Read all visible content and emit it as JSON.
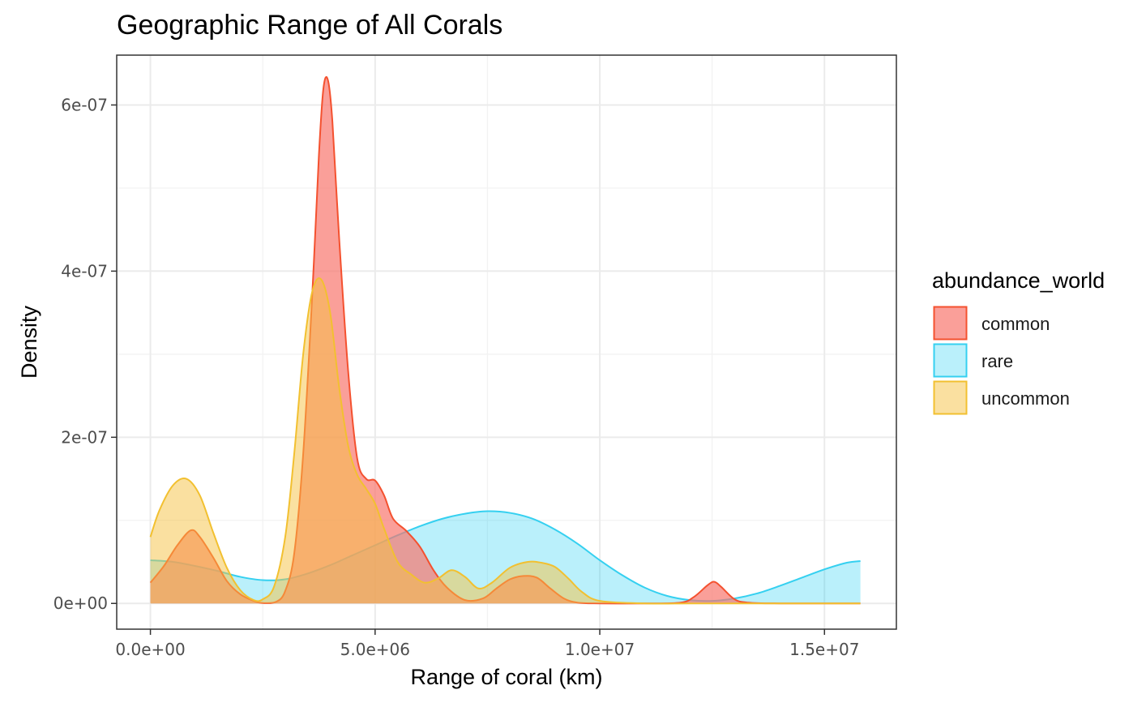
{
  "chart_data": {
    "type": "area",
    "subtype": "density",
    "title": "Geographic Range of All Corals",
    "xlabel": "Range of coral (km)",
    "ylabel": "Density",
    "xlim": [
      -750000,
      16600000
    ],
    "ylim": [
      -3.1e-08,
      6.6e-07
    ],
    "x_ticks": [
      0,
      5000000,
      10000000,
      15000000
    ],
    "x_tick_labels": [
      "0.0e+00",
      "5.0e+06",
      "1.0e+07",
      "1.5e+07"
    ],
    "y_ticks": [
      0,
      2e-07,
      4e-07,
      6e-07
    ],
    "y_tick_labels": [
      "0e+00",
      "2e-07",
      "4e-07",
      "6e-07"
    ],
    "grid": true,
    "legend": {
      "title": "abundance_world",
      "position": "right",
      "entries": [
        "common",
        "rare",
        "uncommon"
      ]
    },
    "series": [
      {
        "name": "rare",
        "fill": "#00C8F0",
        "stroke": "#35D0F0",
        "fill_opacity": 0.27,
        "x": [
          0,
          500000,
          1000000,
          1500000,
          2000000,
          2500000,
          3000000,
          3500000,
          4000000,
          4500000,
          5000000,
          5500000,
          6000000,
          6500000,
          7000000,
          7500000,
          8000000,
          8500000,
          9000000,
          9500000,
          10000000,
          10500000,
          11000000,
          11500000,
          12000000,
          12500000,
          13000000,
          13500000,
          14000000,
          14500000,
          15000000,
          15500000,
          15800000
        ],
        "values": [
          5.2e-08,
          5e-08,
          4.5e-08,
          3.9e-08,
          3.2e-08,
          2.8e-08,
          2.9e-08,
          3.6e-08,
          4.6e-08,
          5.8e-08,
          7e-08,
          8.2e-08,
          9.3e-08,
          1.02e-07,
          1.08e-07,
          1.11e-07,
          1.09e-07,
          1.02e-07,
          8.9e-08,
          7.2e-08,
          5.2e-08,
          3.4e-08,
          1.9e-08,
          9e-09,
          4e-09,
          3e-09,
          6e-09,
          1.2e-08,
          2.1e-08,
          3.1e-08,
          4.1e-08,
          4.9e-08,
          5.1e-08
        ]
      },
      {
        "name": "common",
        "fill": "#F8766D",
        "stroke": "#F4512F",
        "fill_opacity": 0.7,
        "x": [
          0,
          300000,
          600000,
          900000,
          1100000,
          1400000,
          1700000,
          2000000,
          2300000,
          2500000,
          2800000,
          3000000,
          3200000,
          3400000,
          3600000,
          3750000,
          3850000,
          3950000,
          4050000,
          4200000,
          4400000,
          4600000,
          4800000,
          5000000,
          5200000,
          5400000,
          5700000,
          6000000,
          6300000,
          6600000,
          7000000,
          7400000,
          7700000,
          8000000,
          8300000,
          8600000,
          8900000,
          9200000,
          9500000,
          10000000,
          11000000,
          11800000,
          12100000,
          12400000,
          12550000,
          12700000,
          13000000,
          13300000,
          14000000,
          15000000,
          15800000
        ],
        "values": [
          2.5e-08,
          4.5e-08,
          7e-08,
          8.8e-08,
          8e-08,
          5.5e-08,
          2.7e-08,
          1.1e-08,
          3e-09,
          5e-10,
          2e-09,
          1.5e-08,
          6e-08,
          1.8e-07,
          3.7e-07,
          5.4e-07,
          6.2e-07,
          6.3e-07,
          5.8e-07,
          4.4e-07,
          2.8e-07,
          1.75e-07,
          1.5e-07,
          1.48e-07,
          1.3e-07,
          1.02e-07,
          8.7e-08,
          6.8e-08,
          4e-08,
          1.9e-08,
          4e-09,
          6e-09,
          1.8e-08,
          2.9e-08,
          3.3e-08,
          3.1e-08,
          1.8e-08,
          6e-09,
          1e-09,
          0,
          0,
          1e-09,
          8e-09,
          2.2e-08,
          2.6e-08,
          2e-08,
          5e-09,
          1e-09,
          0,
          0,
          0
        ]
      },
      {
        "name": "uncommon",
        "fill": "#F5C242",
        "stroke": "#F2C030",
        "fill_opacity": 0.5,
        "x": [
          0,
          200000,
          500000,
          800000,
          1100000,
          1400000,
          1700000,
          2000000,
          2300000,
          2500000,
          2750000,
          3000000,
          3200000,
          3400000,
          3600000,
          3800000,
          4000000,
          4200000,
          4400000,
          4600000,
          4800000,
          5000000,
          5200000,
          5500000,
          5800000,
          6100000,
          6400000,
          6700000,
          7000000,
          7300000,
          7600000,
          8000000,
          8400000,
          8700000,
          9000000,
          9300000,
          9600000,
          10000000,
          11000000,
          12000000,
          13000000,
          14000000,
          15000000,
          15800000
        ],
        "values": [
          8e-08,
          1.12e-07,
          1.42e-07,
          1.5e-07,
          1.3e-07,
          8.5e-08,
          4.3e-08,
          1.6e-08,
          4e-09,
          5e-09,
          2e-08,
          8e-08,
          1.8e-07,
          3e-07,
          3.75e-07,
          3.9e-07,
          3.5e-07,
          2.6e-07,
          1.9e-07,
          1.55e-07,
          1.38e-07,
          1.2e-07,
          9e-08,
          5e-08,
          3.5e-08,
          2.5e-08,
          3e-08,
          4e-08,
          3.2e-08,
          1.8e-08,
          2.5e-08,
          4.3e-08,
          5e-08,
          4.9e-08,
          4.4e-08,
          3e-08,
          1.4e-08,
          3e-09,
          0,
          0,
          0,
          0,
          0,
          0
        ]
      }
    ]
  }
}
